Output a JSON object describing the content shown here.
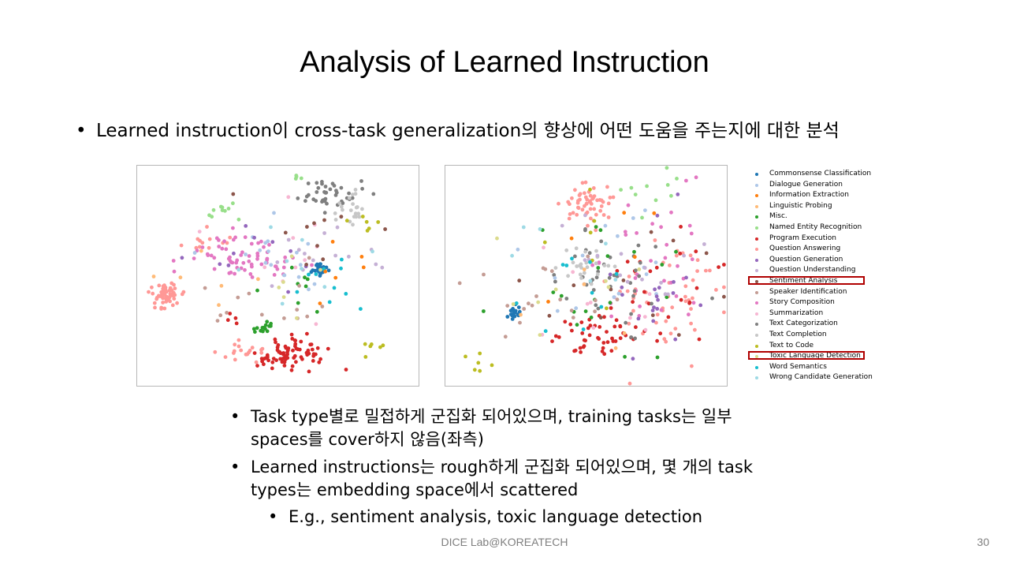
{
  "slide": {
    "title": "Analysis of Learned Instruction",
    "top_bullet": "Learned instruction이 cross-task generalization의 향상에 어떤 도움을 주는지에 대한 분석",
    "bullets": [
      {
        "line1": "Task type별로 밀접하게 군집화 되어있으며, training tasks는 일부",
        "line2": "spaces를 cover하지 않음(좌측)"
      },
      {
        "line1": "Learned instructions는 rough하게 군집화 되어있으며, 몇 개의 task",
        "line2": "types는 embedding space에서 scattered"
      }
    ],
    "sub_bullet": "E.g., sentiment analysis, toxic language detection",
    "bullet_mark": "•",
    "footer": "DICE  Lab@KOREATECH",
    "page_number": "30"
  },
  "chart_data": [
    {
      "type": "scatter",
      "panel": "left",
      "xlim": [
        0,
        100
      ],
      "ylim": [
        0,
        100
      ],
      "clusters": [
        {
          "series": "Question Answering",
          "x": 10,
          "y": 40,
          "sx": 3,
          "sy": 3,
          "n": 55
        },
        {
          "series": "Question Answering",
          "x": 36,
          "y": 15,
          "sx": 4,
          "sy": 3,
          "n": 18
        },
        {
          "series": "Question Answering",
          "x": 25,
          "y": 65,
          "sx": 4,
          "sy": 3,
          "n": 12
        },
        {
          "series": "Program Execution",
          "x": 54,
          "y": 15,
          "sx": 7,
          "sy": 4,
          "n": 75
        },
        {
          "series": "Program Execution",
          "x": 33,
          "y": 27,
          "sx": 3,
          "sy": 3,
          "n": 4
        },
        {
          "series": "Commonsense Classification",
          "x": 65,
          "y": 53,
          "sx": 1.2,
          "sy": 1.2,
          "n": 28
        },
        {
          "series": "Story Composition",
          "x": 36,
          "y": 58,
          "sx": 10,
          "sy": 5,
          "n": 65
        },
        {
          "series": "Text Categorization",
          "x": 68,
          "y": 88,
          "sx": 6,
          "sy": 4,
          "n": 40
        },
        {
          "series": "Text Completion",
          "x": 75,
          "y": 80,
          "sx": 3,
          "sy": 3,
          "n": 22
        },
        {
          "series": "Text to Code",
          "x": 80,
          "y": 72,
          "sx": 3,
          "sy": 3,
          "n": 6
        },
        {
          "series": "Text to Code",
          "x": 83,
          "y": 18,
          "sx": 2,
          "sy": 2,
          "n": 6
        },
        {
          "series": "Named Entity Recognition",
          "x": 32,
          "y": 80,
          "sx": 3,
          "sy": 2,
          "n": 10
        },
        {
          "series": "Named Entity Recognition",
          "x": 57,
          "y": 94,
          "sx": 1,
          "sy": 1,
          "n": 4
        },
        {
          "series": "Misc.",
          "x": 45,
          "y": 27,
          "sx": 2,
          "sy": 1.5,
          "n": 14
        },
        {
          "series": "Misc.",
          "x": 60,
          "y": 48,
          "sx": 6,
          "sy": 8,
          "n": 8
        },
        {
          "series": "Dialogue Generation",
          "x": 50,
          "y": 55,
          "sx": 12,
          "sy": 8,
          "n": 18
        },
        {
          "series": "Question Understanding",
          "x": 60,
          "y": 60,
          "sx": 12,
          "sy": 8,
          "n": 14
        },
        {
          "series": "Speaker Identification",
          "x": 45,
          "y": 40,
          "sx": 14,
          "sy": 10,
          "n": 14
        },
        {
          "series": "Summarization",
          "x": 50,
          "y": 50,
          "sx": 18,
          "sy": 14,
          "n": 10
        },
        {
          "series": "Word Semantics",
          "x": 70,
          "y": 45,
          "sx": 8,
          "sy": 10,
          "n": 10
        },
        {
          "series": "Wrong Candidate Generation",
          "x": 55,
          "y": 60,
          "sx": 15,
          "sy": 12,
          "n": 8
        },
        {
          "series": "Information Extraction",
          "x": 70,
          "y": 55,
          "sx": 12,
          "sy": 15,
          "n": 6
        },
        {
          "series": "Linguistic Probing",
          "x": 30,
          "y": 40,
          "sx": 12,
          "sy": 10,
          "n": 6
        },
        {
          "series": "Question Generation",
          "x": 40,
          "y": 55,
          "sx": 12,
          "sy": 12,
          "n": 10
        },
        {
          "series": "Sentiment Analysis",
          "x": 65,
          "y": 70,
          "sx": 10,
          "sy": 10,
          "n": 10
        },
        {
          "series": "Toxic Language Detection",
          "x": 60,
          "y": 45,
          "sx": 10,
          "sy": 10,
          "n": 6
        }
      ]
    },
    {
      "type": "scatter",
      "panel": "right",
      "xlim": [
        0,
        100
      ],
      "ylim": [
        0,
        100
      ],
      "clusters": [
        {
          "series": "Question Answering",
          "x": 50,
          "y": 82,
          "sx": 4,
          "sy": 4,
          "n": 55
        },
        {
          "series": "Question Answering",
          "x": 80,
          "y": 40,
          "sx": 10,
          "sy": 15,
          "n": 50
        },
        {
          "series": "Program Execution",
          "x": 55,
          "y": 22,
          "sx": 9,
          "sy": 4,
          "n": 50
        },
        {
          "series": "Program Execution",
          "x": 75,
          "y": 50,
          "sx": 10,
          "sy": 15,
          "n": 20
        },
        {
          "series": "Commonsense Classification",
          "x": 25,
          "y": 33,
          "sx": 1.5,
          "sy": 1.5,
          "n": 22
        },
        {
          "series": "Story Composition",
          "x": 70,
          "y": 55,
          "sx": 12,
          "sy": 15,
          "n": 35
        },
        {
          "series": "Text Categorization",
          "x": 58,
          "y": 50,
          "sx": 12,
          "sy": 10,
          "n": 40
        },
        {
          "series": "Text Completion",
          "x": 48,
          "y": 55,
          "sx": 6,
          "sy": 6,
          "n": 25
        },
        {
          "series": "Text to Code",
          "x": 12,
          "y": 10,
          "sx": 3,
          "sy": 4,
          "n": 6
        },
        {
          "series": "Text to Code",
          "x": 55,
          "y": 60,
          "sx": 15,
          "sy": 12,
          "n": 6
        },
        {
          "series": "Named Entity Recognition",
          "x": 75,
          "y": 85,
          "sx": 8,
          "sy": 6,
          "n": 10
        },
        {
          "series": "Misc.",
          "x": 55,
          "y": 40,
          "sx": 20,
          "sy": 15,
          "n": 20
        },
        {
          "series": "Dialogue Generation",
          "x": 55,
          "y": 55,
          "sx": 15,
          "sy": 15,
          "n": 15
        },
        {
          "series": "Question Understanding",
          "x": 70,
          "y": 60,
          "sx": 15,
          "sy": 12,
          "n": 15
        },
        {
          "series": "Speaker Identification",
          "x": 40,
          "y": 40,
          "sx": 15,
          "sy": 12,
          "n": 20
        },
        {
          "series": "Summarization",
          "x": 60,
          "y": 45,
          "sx": 18,
          "sy": 15,
          "n": 10
        },
        {
          "series": "Word Semantics",
          "x": 40,
          "y": 50,
          "sx": 12,
          "sy": 12,
          "n": 10
        },
        {
          "series": "Wrong Candidate Generation",
          "x": 45,
          "y": 60,
          "sx": 15,
          "sy": 12,
          "n": 6
        },
        {
          "series": "Information Extraction",
          "x": 60,
          "y": 58,
          "sx": 15,
          "sy": 12,
          "n": 5
        },
        {
          "series": "Linguistic Probing",
          "x": 50,
          "y": 40,
          "sx": 15,
          "sy": 12,
          "n": 5
        },
        {
          "series": "Question Generation",
          "x": 75,
          "y": 45,
          "sx": 12,
          "sy": 15,
          "n": 20
        },
        {
          "series": "Sentiment Analysis",
          "x": 60,
          "y": 50,
          "sx": 18,
          "sy": 15,
          "n": 12
        },
        {
          "series": "Toxic Language Detection",
          "x": 55,
          "y": 50,
          "sx": 20,
          "sy": 15,
          "n": 8
        }
      ]
    }
  ],
  "legend": {
    "placement": "right",
    "highlight_color": "#b00000",
    "items": [
      {
        "label": "Commonsense Classification",
        "color": "#1f77b4"
      },
      {
        "label": "Dialogue Generation",
        "color": "#aec7e8"
      },
      {
        "label": "Information Extraction",
        "color": "#ff7f0e"
      },
      {
        "label": "Linguistic Probing",
        "color": "#ffbb78"
      },
      {
        "label": "Misc.",
        "color": "#2ca02c"
      },
      {
        "label": "Named Entity Recognition",
        "color": "#98df8a"
      },
      {
        "label": "Program Execution",
        "color": "#d62728"
      },
      {
        "label": "Question Answering",
        "color": "#ff9896"
      },
      {
        "label": "Question Generation",
        "color": "#9467bd"
      },
      {
        "label": "Question Understanding",
        "color": "#c5b0d5"
      },
      {
        "label": "Sentiment Analysis",
        "color": "#8c564b",
        "highlighted": true
      },
      {
        "label": "Speaker Identification",
        "color": "#c49c94"
      },
      {
        "label": "Story Composition",
        "color": "#e377c2"
      },
      {
        "label": "Summarization",
        "color": "#f7b6d2"
      },
      {
        "label": "Text Categorization",
        "color": "#7f7f7f"
      },
      {
        "label": "Text Completion",
        "color": "#c7c7c7"
      },
      {
        "label": "Text to Code",
        "color": "#bcbd22"
      },
      {
        "label": "Toxic Language Detection",
        "color": "#dbdb8d",
        "highlighted": true
      },
      {
        "label": "Word Semantics",
        "color": "#17becf"
      },
      {
        "label": "Wrong Candidate Generation",
        "color": "#9edae5"
      }
    ]
  }
}
